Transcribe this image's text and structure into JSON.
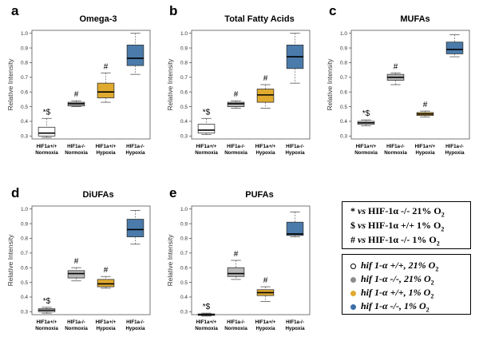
{
  "chart_data": [
    {
      "type": "boxplot",
      "letter": "a",
      "title": "Omega-3",
      "ylabel": "Relative Intensity",
      "ylim": [
        0.28,
        1.02
      ],
      "yticks": [
        "0.3",
        "0.4",
        "0.5",
        "0.6",
        "0.7",
        "0.8",
        "0.9",
        "1.0"
      ],
      "categories": [
        [
          "HIF1a+/+",
          "Normoxia"
        ],
        [
          "HIF1a-/-",
          "Normoxia"
        ],
        [
          "HIF1a+/+",
          "Hypoxia"
        ],
        [
          "HIF1a-/-",
          "Hypoxia"
        ]
      ],
      "boxes": [
        {
          "min": 0.29,
          "q1": 0.3,
          "median": 0.32,
          "q3": 0.36,
          "max": 0.42,
          "color": "#ffffff",
          "annotation": "*$"
        },
        {
          "min": 0.5,
          "q1": 0.505,
          "median": 0.52,
          "q3": 0.53,
          "max": 0.54,
          "color": "#b8b8b8",
          "annotation": "#"
        },
        {
          "min": 0.53,
          "q1": 0.56,
          "median": 0.6,
          "q3": 0.66,
          "max": 0.73,
          "color": "#e0aa2f",
          "annotation": "#"
        },
        {
          "min": 0.72,
          "q1": 0.78,
          "median": 0.83,
          "q3": 0.92,
          "max": 1.0,
          "color": "#4a7bab",
          "annotation": ""
        }
      ]
    },
    {
      "type": "boxplot",
      "letter": "b",
      "title": "Total Fatty Acids",
      "ylabel": "Relative Intensity",
      "ylim": [
        0.28,
        1.02
      ],
      "yticks": [
        "0.3",
        "0.4",
        "0.5",
        "0.6",
        "0.7",
        "0.8",
        "0.9",
        "1.0"
      ],
      "categories": [
        [
          "HIF1a+/+",
          "Normoxia"
        ],
        [
          "HIF1a-/-",
          "Normoxia"
        ],
        [
          "HIF1a+/+",
          "Hypoxia"
        ],
        [
          "HIF1a-/-",
          "Hypoxia"
        ]
      ],
      "boxes": [
        {
          "min": 0.31,
          "q1": 0.32,
          "median": 0.34,
          "q3": 0.38,
          "max": 0.42,
          "color": "#ffffff",
          "annotation": "*$"
        },
        {
          "min": 0.49,
          "q1": 0.5,
          "median": 0.52,
          "q3": 0.53,
          "max": 0.54,
          "color": "#b8b8b8",
          "annotation": "#"
        },
        {
          "min": 0.49,
          "q1": 0.53,
          "median": 0.58,
          "q3": 0.62,
          "max": 0.65,
          "color": "#e0aa2f",
          "annotation": "#"
        },
        {
          "min": 0.66,
          "q1": 0.76,
          "median": 0.84,
          "q3": 0.92,
          "max": 1.0,
          "color": "#4a7bab",
          "annotation": ""
        }
      ]
    },
    {
      "type": "boxplot",
      "letter": "c",
      "title": "MUFAs",
      "ylabel": "Relative Intensity",
      "ylim": [
        0.28,
        1.02
      ],
      "yticks": [
        "0.3",
        "0.4",
        "0.5",
        "0.6",
        "0.7",
        "0.8",
        "0.9",
        "1.0"
      ],
      "categories": [
        [
          "HIF1a+/+",
          "Normoxia"
        ],
        [
          "HIF1a-/-",
          "Normoxia"
        ],
        [
          "HIF1a+/+",
          "Hypoxia"
        ],
        [
          "HIF1a-/-",
          "Hypoxia"
        ]
      ],
      "boxes": [
        {
          "min": 0.37,
          "q1": 0.38,
          "median": 0.39,
          "q3": 0.4,
          "max": 0.41,
          "color": "#ffffff",
          "annotation": "*$"
        },
        {
          "min": 0.65,
          "q1": 0.68,
          "median": 0.7,
          "q3": 0.72,
          "max": 0.73,
          "color": "#b8b8b8",
          "annotation": "#"
        },
        {
          "min": 0.43,
          "q1": 0.44,
          "median": 0.45,
          "q3": 0.46,
          "max": 0.47,
          "color": "#e0aa2f",
          "annotation": "#"
        },
        {
          "min": 0.84,
          "q1": 0.86,
          "median": 0.89,
          "q3": 0.94,
          "max": 0.99,
          "color": "#4a7bab",
          "annotation": ""
        }
      ]
    },
    {
      "type": "boxplot",
      "letter": "d",
      "title": "DiUFAs",
      "ylabel": "Relative Intensity",
      "ylim": [
        0.28,
        1.02
      ],
      "yticks": [
        "0.3",
        "0.4",
        "0.5",
        "0.6",
        "0.7",
        "0.8",
        "0.9",
        "1.0"
      ],
      "categories": [
        [
          "HIF1a+/+",
          "Normoxia"
        ],
        [
          "HIF1a-/-",
          "Normoxia"
        ],
        [
          "HIF1a+/+",
          "Hypoxia"
        ],
        [
          "HIF1a-/-",
          "Hypoxia"
        ]
      ],
      "boxes": [
        {
          "min": 0.29,
          "q1": 0.3,
          "median": 0.31,
          "q3": 0.32,
          "max": 0.33,
          "color": "#ffffff",
          "annotation": "*$"
        },
        {
          "min": 0.51,
          "q1": 0.53,
          "median": 0.56,
          "q3": 0.58,
          "max": 0.6,
          "color": "#b8b8b8",
          "annotation": "#"
        },
        {
          "min": 0.46,
          "q1": 0.47,
          "median": 0.49,
          "q3": 0.52,
          "max": 0.54,
          "color": "#e0aa2f",
          "annotation": "#"
        },
        {
          "min": 0.76,
          "q1": 0.81,
          "median": 0.86,
          "q3": 0.93,
          "max": 0.99,
          "color": "#4a7bab",
          "annotation": ""
        }
      ]
    },
    {
      "type": "boxplot",
      "letter": "e",
      "title": "PUFAs",
      "ylabel": "Relative Intensity",
      "ylim": [
        0.28,
        1.02
      ],
      "yticks": [
        "0.3",
        "0.4",
        "0.5",
        "0.6",
        "0.7",
        "0.8",
        "0.9",
        "1.0"
      ],
      "categories": [
        [
          "HIF1a+/+",
          "Normoxia"
        ],
        [
          "HIF1a-/-",
          "Normoxia"
        ],
        [
          "HIF1a+/+",
          "Hypoxia"
        ],
        [
          "HIF1a-/-",
          "Hypoxia"
        ]
      ],
      "boxes": [
        {
          "min": 0.27,
          "q1": 0.275,
          "median": 0.28,
          "q3": 0.285,
          "max": 0.29,
          "color": "#ffffff",
          "annotation": "*$"
        },
        {
          "min": 0.52,
          "q1": 0.54,
          "median": 0.56,
          "q3": 0.6,
          "max": 0.65,
          "color": "#b8b8b8",
          "annotation": "#"
        },
        {
          "min": 0.37,
          "q1": 0.41,
          "median": 0.43,
          "q3": 0.45,
          "max": 0.47,
          "color": "#e0aa2f",
          "annotation": "#"
        },
        {
          "min": 0.81,
          "q1": 0.82,
          "median": 0.83,
          "q3": 0.91,
          "max": 0.98,
          "color": "#4a7bab",
          "annotation": ""
        }
      ]
    }
  ],
  "significance_legend": [
    {
      "symbol": "*",
      "pre": "vs",
      "text": "HIF-1α -/- 21% O",
      "sub": "2"
    },
    {
      "symbol": "$",
      "pre": "vs",
      "text": "HIF-1α +/+ 1% O",
      "sub": "2"
    },
    {
      "symbol": "#",
      "pre": "vs",
      "text": "HIF-1α -/- 1% O",
      "sub": "2"
    }
  ],
  "group_legend": [
    {
      "label": "hif 1-α +/+, 21% O",
      "sub": "2",
      "color": "#ffffff"
    },
    {
      "label": "hif 1-α -/-, 21% O",
      "sub": "2",
      "color": "#8c8c8c"
    },
    {
      "label": "hif 1-α +/+, 1% O",
      "sub": "2",
      "color": "#e0aa2f"
    },
    {
      "label": "hif 1-α -/-, 1% O",
      "sub": "2",
      "color": "#3d6ea8"
    }
  ]
}
